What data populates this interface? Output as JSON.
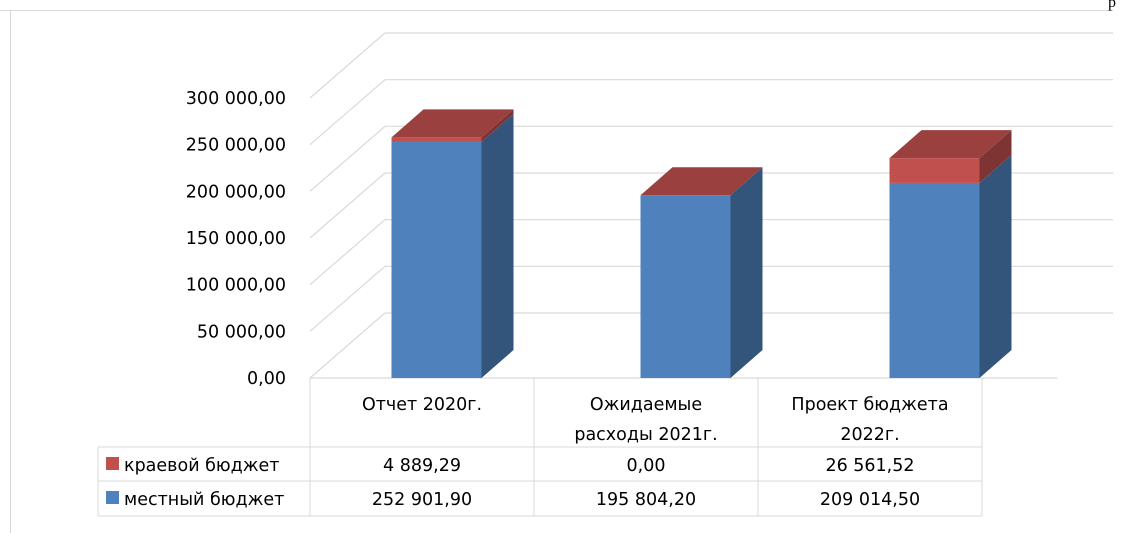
{
  "corner_mark": "р",
  "chart_data": {
    "type": "bar",
    "stacked": true,
    "three_d": true,
    "categories": [
      [
        "Отчет 2020г."
      ],
      [
        "Ожидаемые",
        "расходы 2021г."
      ],
      [
        "Проект бюджета",
        "2022г."
      ]
    ],
    "series": [
      {
        "name": "местный бюджет",
        "color": "#4F81BD",
        "values": [
          252901.9,
          195804.2,
          209014.5
        ],
        "labels": [
          "252 901,90",
          "195 804,20",
          "209 014,50"
        ]
      },
      {
        "name": "краевой бюджет",
        "color": "#C0504D",
        "values": [
          4889.29,
          0.0,
          26561.52
        ],
        "labels": [
          "4 889,29",
          "0,00",
          "26 561,52"
        ]
      }
    ],
    "ylim": [
      0,
      300000
    ],
    "yticks": [
      0,
      50000,
      100000,
      150000,
      200000,
      250000,
      300000
    ],
    "ytick_labels": [
      "0,00",
      "50 000,00",
      "100 000,00",
      "150 000,00",
      "200 000,00",
      "250 000,00",
      "300 000,00"
    ],
    "grid": true,
    "legend": "data-table"
  }
}
